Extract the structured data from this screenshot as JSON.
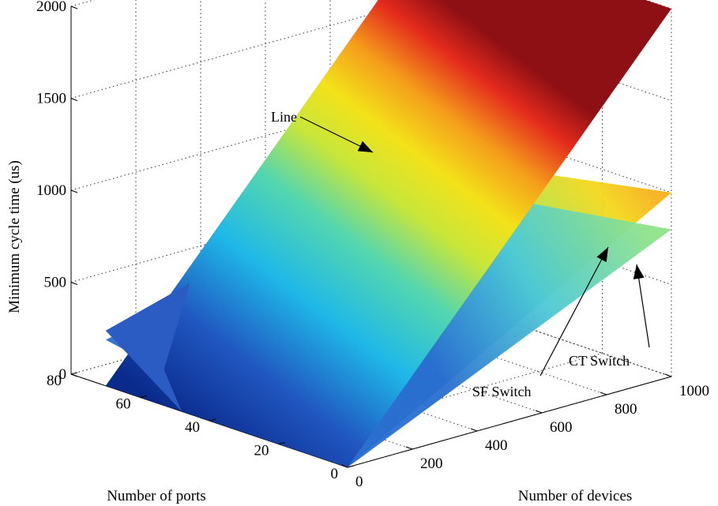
{
  "chart_data": {
    "type": "surface-3d",
    "xlabel": "Number of ports",
    "ylabel": "Number of devices",
    "zlabel": "Minimum cycle time (us)",
    "xlim": [
      0,
      80
    ],
    "ylim": [
      0,
      1000
    ],
    "zlim": [
      0,
      2000
    ],
    "x_ticks": [
      "0",
      "20",
      "40",
      "60",
      "80"
    ],
    "y_ticks": [
      "0",
      "200",
      "400",
      "600",
      "800",
      "1000"
    ],
    "z_ticks": [
      "0",
      "500",
      "1000",
      "1500",
      "2000"
    ],
    "grid": true,
    "colormap": "jet",
    "series": [
      {
        "name": "Line",
        "z_at_ports_0_devices_0": 0,
        "z_at_ports_0_devices_1000": 2000,
        "z_at_ports_70_devices_1000": 2000,
        "z_at_ports_70_devices_0": 0
      },
      {
        "name": "SF Switch",
        "z_at_ports_0_devices_0": 0,
        "z_at_ports_0_devices_1000": 1000,
        "z_at_ports_70_devices_1000": 750,
        "z_at_ports_70_devices_0": 300
      },
      {
        "name": "CT Switch",
        "z_at_ports_0_devices_0": 0,
        "z_at_ports_0_devices_1000": 800,
        "z_at_ports_70_devices_1000": 600,
        "z_at_ports_70_devices_0": 250
      }
    ],
    "annotations": [
      "Line",
      "SF Switch",
      "CT Switch"
    ]
  }
}
